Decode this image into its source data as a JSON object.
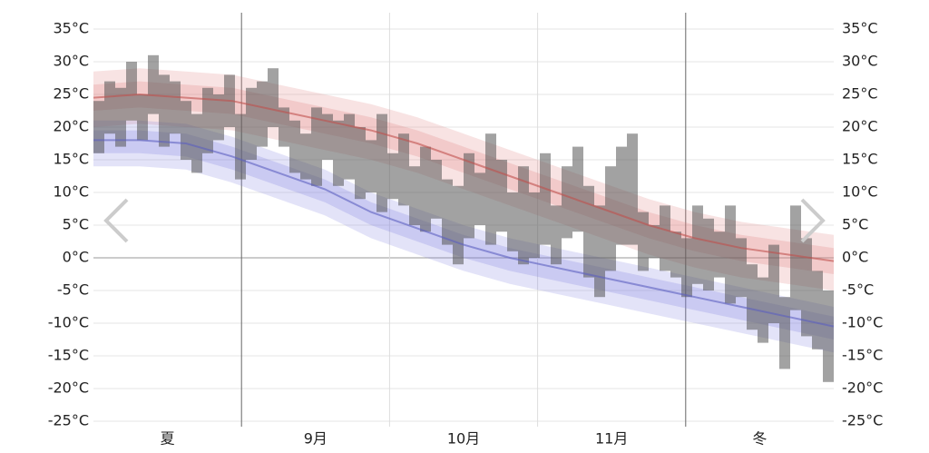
{
  "chart_data": {
    "type": "temperature_range",
    "xlabels": [
      "夏",
      "9月",
      "10月",
      "11月",
      "冬"
    ],
    "ylim": [
      -25,
      35
    ],
    "yticks": [
      {
        "value": 35,
        "label": "35°C"
      },
      {
        "value": 30,
        "label": "30°C"
      },
      {
        "value": 25,
        "label": "25°C"
      },
      {
        "value": 20,
        "label": "20°C"
      },
      {
        "value": 15,
        "label": "15°C"
      },
      {
        "value": 10,
        "label": "10°C"
      },
      {
        "value": 5,
        "label": "5°C"
      },
      {
        "value": 0,
        "label": "0°C"
      },
      {
        "value": -5,
        "label": "-5°C"
      },
      {
        "value": -10,
        "label": "-10°C"
      },
      {
        "value": -15,
        "label": "-15°C"
      },
      {
        "value": -20,
        "label": "-20°C"
      },
      {
        "value": -25,
        "label": "-25°C"
      }
    ],
    "y2lim": [
      -25,
      35
    ],
    "y2ticks": [
      {
        "value": 35,
        "label": "35°C"
      },
      {
        "value": 30,
        "label": "30°C"
      },
      {
        "value": 25,
        "label": "25°C"
      },
      {
        "value": 20,
        "label": "20°C"
      },
      {
        "value": 15,
        "label": "15°C"
      },
      {
        "value": 10,
        "label": "10°C"
      },
      {
        "value": 5,
        "label": "5°C"
      },
      {
        "value": 0,
        "label": "0°C"
      },
      {
        "value": -5,
        "label": "-5°C"
      },
      {
        "value": -10,
        "label": "-10°C"
      },
      {
        "value": -15,
        "label": "-15°C"
      },
      {
        "value": -20,
        "label": "-20°C"
      },
      {
        "value": -25,
        "label": "-25°C"
      }
    ],
    "grid": true,
    "daily": {
      "color": "#555555",
      "low": [
        16,
        19,
        17,
        21,
        18,
        22,
        17,
        19,
        15,
        13,
        16,
        18,
        20,
        12,
        15,
        17,
        20,
        17,
        13,
        12,
        11,
        15,
        11,
        12,
        9,
        10,
        7,
        9,
        8,
        5,
        4,
        6,
        2,
        -1,
        3,
        5,
        2,
        4,
        1,
        -1,
        0,
        2,
        -1,
        3,
        4,
        -3,
        -6,
        -2,
        2,
        2,
        -2,
        0,
        -2,
        -3,
        -6,
        -4,
        -5,
        -3,
        -7,
        -6,
        -11,
        -13,
        -10,
        -17,
        -8,
        -12,
        -14,
        -19
      ],
      "high": [
        24,
        27,
        26,
        30,
        25,
        31,
        28,
        27,
        24,
        22,
        26,
        25,
        28,
        22,
        26,
        27,
        29,
        23,
        21,
        19,
        23,
        22,
        21,
        22,
        20,
        18,
        22,
        16,
        19,
        14,
        17,
        15,
        12,
        11,
        16,
        13,
        19,
        15,
        10,
        14,
        10,
        16,
        8,
        14,
        17,
        11,
        8,
        14,
        17,
        19,
        7,
        5,
        8,
        4,
        3,
        8,
        6,
        4,
        8,
        3,
        -1,
        -3,
        2,
        -6,
        8,
        3,
        -2,
        -5
      ]
    },
    "avg_high": {
      "color": "#c0504d",
      "values": [
        24.5,
        25,
        24.5,
        24,
        22.5,
        21,
        19.5,
        17.5,
        15,
        12.5,
        10,
        7.5,
        5,
        3,
        1.5,
        0.5,
        -0.5
      ]
    },
    "avg_low": {
      "color": "#5b5fc0",
      "values": [
        18,
        18,
        17.5,
        15.5,
        13,
        10.5,
        7,
        4.5,
        2,
        0,
        -1.5,
        -3,
        -4.5,
        -6,
        -7.5,
        -9,
        -10.5
      ]
    },
    "high_band": {
      "color": "#e08080",
      "outer_upper": [
        28.5,
        29,
        28.5,
        28,
        26.5,
        25,
        23.5,
        21.5,
        19,
        16.5,
        14,
        11.5,
        9,
        7,
        5.5,
        4.5,
        3.5
      ],
      "outer_lower": [
        20,
        20.5,
        20,
        19.5,
        18,
        16.5,
        15,
        13,
        10.5,
        8,
        5.5,
        3,
        0.5,
        -1.5,
        -3,
        -4,
        -5
      ],
      "inner_upper": [
        26.5,
        27,
        26.5,
        26,
        24.5,
        23,
        21.5,
        19.5,
        17,
        14.5,
        12,
        9.5,
        7,
        5,
        3.5,
        2.5,
        1.5
      ],
      "inner_lower": [
        22.5,
        23,
        22.5,
        22,
        20.5,
        19,
        17.5,
        15.5,
        13,
        10.5,
        8,
        5.5,
        3,
        1,
        -0.5,
        -1.5,
        -2.5
      ]
    },
    "low_band": {
      "color": "#8080e0",
      "outer_upper": [
        21,
        21,
        20.5,
        18.5,
        16,
        13.5,
        10,
        7.5,
        5,
        3,
        1.5,
        0,
        -1.5,
        -3,
        -4.5,
        -6,
        -7.5
      ],
      "outer_lower": [
        14,
        14,
        13.5,
        11.5,
        9,
        6.5,
        3,
        0.5,
        -2,
        -4,
        -5.5,
        -7,
        -8.5,
        -10,
        -11.5,
        -13,
        -14.5
      ],
      "inner_upper": [
        19.5,
        19.5,
        19,
        17,
        14.5,
        12,
        8.5,
        6,
        3.5,
        1.5,
        0,
        -1.5,
        -3,
        -4.5,
        -6,
        -7.5,
        -9
      ],
      "inner_lower": [
        16,
        16,
        15.5,
        13.5,
        11,
        8.5,
        5,
        2.5,
        0,
        -2,
        -3.5,
        -5,
        -6.5,
        -8,
        -9.5,
        -11,
        -12.5
      ]
    }
  }
}
